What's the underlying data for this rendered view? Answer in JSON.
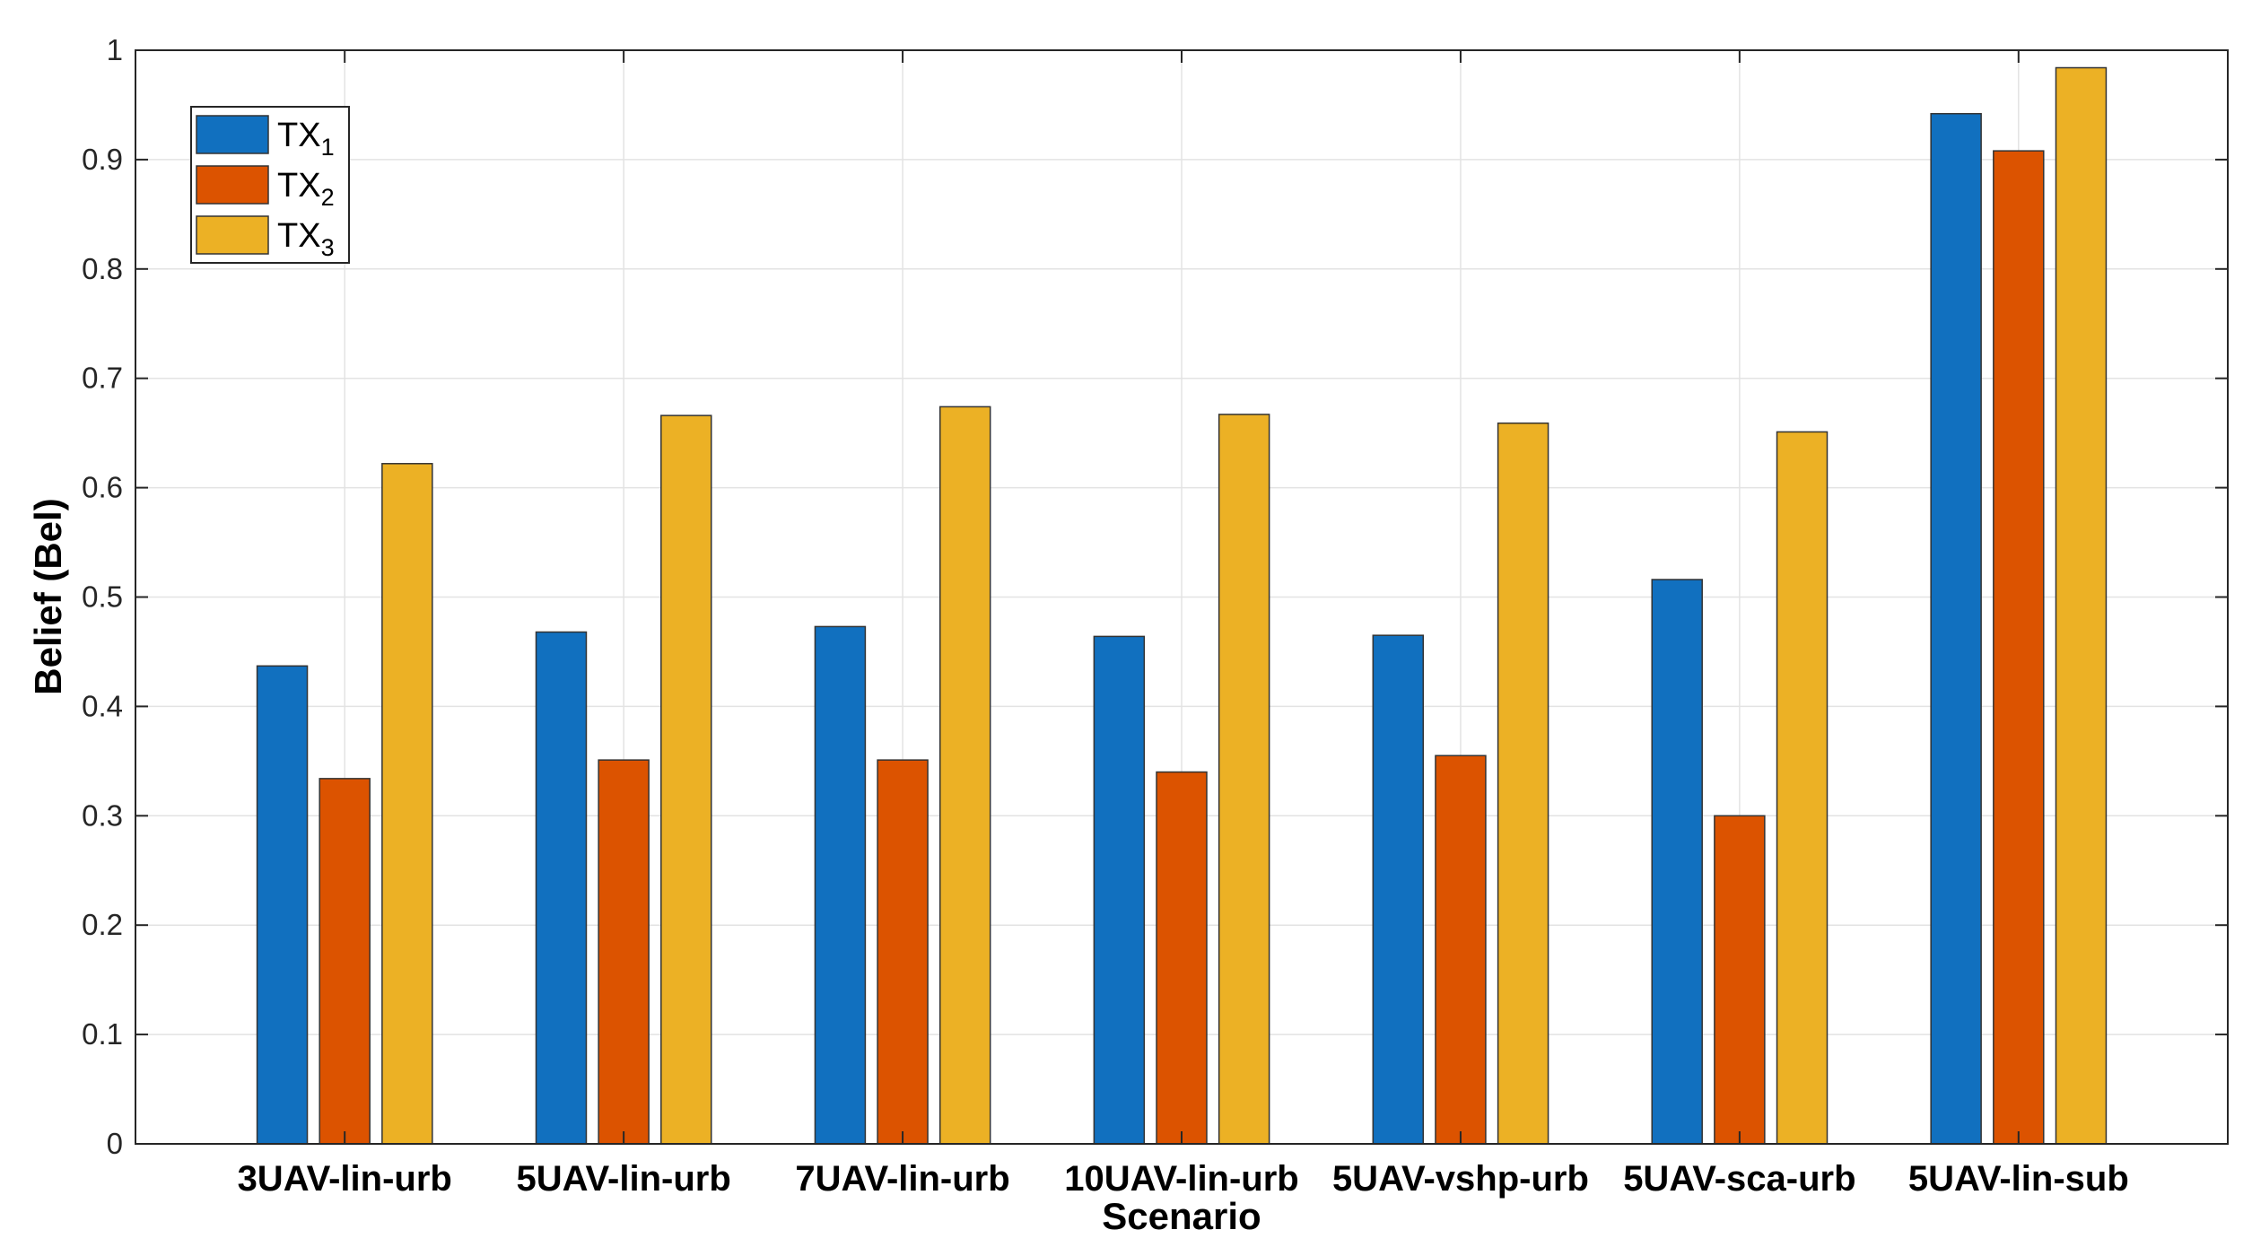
{
  "chart_data": {
    "type": "bar",
    "title": "",
    "xlabel": "Scenario",
    "ylabel": "Belief (Bel)",
    "ylim": [
      0,
      1
    ],
    "yticks": [
      0,
      0.1,
      0.2,
      0.3,
      0.4,
      0.5,
      0.6,
      0.7,
      0.8,
      0.9,
      1
    ],
    "ytick_labels": [
      "0",
      "0.1",
      "0.2",
      "0.3",
      "0.4",
      "0.5",
      "0.6",
      "0.7",
      "0.8",
      "0.9",
      "1"
    ],
    "grid": true,
    "legend_position": "top-left",
    "categories": [
      "3UAV-lin-urb",
      "5UAV-lin-urb",
      "7UAV-lin-urb",
      "10UAV-lin-urb",
      "5UAV-vshp-urb",
      "5UAV-sca-urb",
      "5UAV-lin-sub"
    ],
    "series": [
      {
        "name": "TX",
        "subscript": "1",
        "color": "#1170BF",
        "values": [
          0.437,
          0.468,
          0.473,
          0.464,
          0.465,
          0.516,
          0.942
        ]
      },
      {
        "name": "TX",
        "subscript": "2",
        "color": "#DC5300",
        "values": [
          0.334,
          0.351,
          0.351,
          0.34,
          0.355,
          0.3,
          0.908
        ]
      },
      {
        "name": "TX",
        "subscript": "3",
        "color": "#ECB125",
        "values": [
          0.622,
          0.666,
          0.674,
          0.667,
          0.659,
          0.651,
          0.984
        ]
      }
    ]
  }
}
